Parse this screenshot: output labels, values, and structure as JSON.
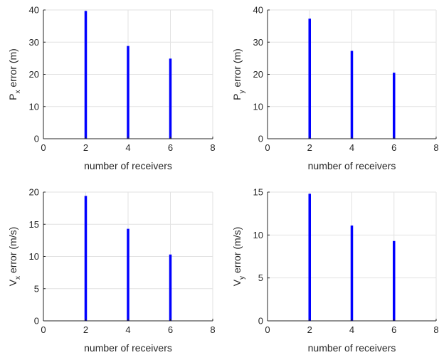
{
  "chart_data": [
    {
      "type": "bar",
      "x": [
        2,
        4,
        6
      ],
      "values": [
        39.7,
        28.8,
        24.9
      ],
      "xlabel": "number of receivers",
      "ylabel": {
        "pre": "P",
        "sub": "x",
        "post": " error (m)"
      },
      "xlim": [
        0,
        8
      ],
      "ylim": [
        0,
        40
      ],
      "xticks": [
        "0",
        "2",
        "4",
        "6",
        "8"
      ],
      "yticks": [
        "0",
        "10",
        "20",
        "30",
        "40"
      ],
      "grid": true,
      "bar_color": "#0000ff"
    },
    {
      "type": "bar",
      "x": [
        2,
        4,
        6
      ],
      "values": [
        37.3,
        27.3,
        20.5
      ],
      "xlabel": "number of receivers",
      "ylabel": {
        "pre": "P",
        "sub": "y",
        "post": " error (m)"
      },
      "xlim": [
        0,
        8
      ],
      "ylim": [
        0,
        40
      ],
      "xticks": [
        "0",
        "2",
        "4",
        "6",
        "8"
      ],
      "yticks": [
        "0",
        "10",
        "20",
        "30",
        "40"
      ],
      "grid": true,
      "bar_color": "#0000ff"
    },
    {
      "type": "bar",
      "x": [
        2,
        4,
        6
      ],
      "values": [
        19.4,
        14.3,
        10.3
      ],
      "xlabel": "number of receivers",
      "ylabel": {
        "pre": "V",
        "sub": "x",
        "post": " error (m/s)"
      },
      "xlim": [
        0,
        8
      ],
      "ylim": [
        0,
        20
      ],
      "xticks": [
        "0",
        "2",
        "4",
        "6",
        "8"
      ],
      "yticks": [
        "0",
        "5",
        "10",
        "15",
        "20"
      ],
      "grid": true,
      "bar_color": "#0000ff"
    },
    {
      "type": "bar",
      "x": [
        2,
        4,
        6
      ],
      "values": [
        14.8,
        11.1,
        9.3
      ],
      "xlabel": "number of receivers",
      "ylabel": {
        "pre": "V",
        "sub": "y",
        "post": " error (m/s)"
      },
      "xlim": [
        0,
        8
      ],
      "ylim": [
        0,
        15
      ],
      "xticks": [
        "0",
        "2",
        "4",
        "6",
        "8"
      ],
      "yticks": [
        "0",
        "5",
        "10",
        "15"
      ],
      "grid": true,
      "bar_color": "#0000ff"
    }
  ]
}
